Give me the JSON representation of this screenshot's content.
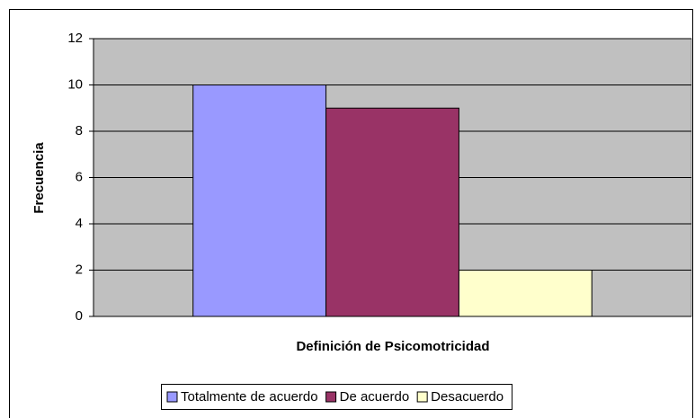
{
  "chart_data": {
    "type": "bar",
    "x_label": "Definición de Psicomotricidad",
    "y_label": "Frecuencia",
    "categories": [
      null
    ],
    "series": [
      {
        "name": "Totalmente de acuerdo",
        "color": "#9999ff",
        "values": [
          10
        ]
      },
      {
        "name": "De acuerdo",
        "color": "#993366",
        "values": [
          9
        ]
      },
      {
        "name": "Desacuerdo",
        "color": "#ffffcc",
        "values": [
          2
        ]
      }
    ],
    "ylim": [
      0,
      12
    ],
    "yticks": [
      0,
      2,
      4,
      6,
      8,
      10,
      12
    ],
    "grid": true,
    "plot_background": "#c0c0c0",
    "legend": "bottom"
  }
}
